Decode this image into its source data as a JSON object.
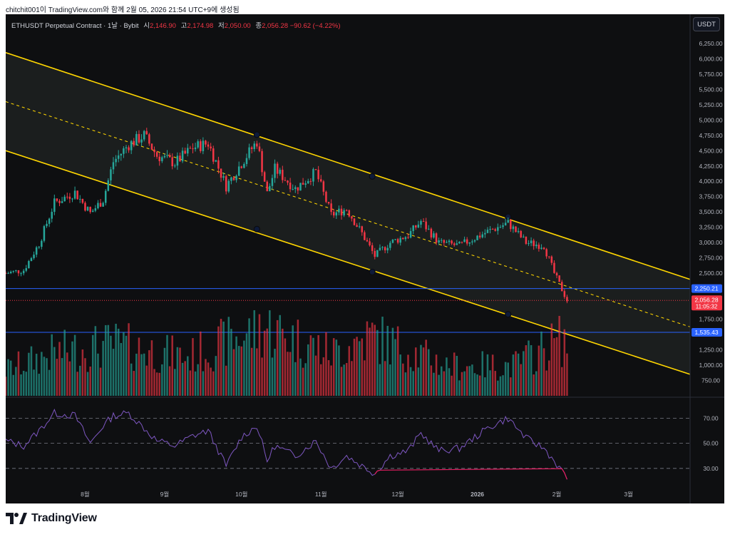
{
  "caption": "chitchit001이 TradingView.com와 함께 2월 05, 2026 21:54 UTC+9에 생성됨",
  "legend": {
    "symbol": "ETHUSDT Perpetual Contract · 1날 · Bybit",
    "open_label": "시",
    "open": "2,146.90",
    "high_label": "고",
    "high": "2,174.98",
    "low_label": "저",
    "low": "2,050.00",
    "close_label": "종",
    "close": "2,056.28",
    "change": "−90.62 (−4.22%)"
  },
  "currency_button": "USDT",
  "price_axis": {
    "ticks": [
      "6,250.00",
      "6,000.00",
      "5,750.00",
      "5,500.00",
      "5,250.00",
      "5,000.00",
      "4,750.00",
      "4,500.00",
      "4,250.00",
      "4,000.00",
      "3,750.00",
      "3,500.00",
      "3,250.00",
      "3,000.00",
      "2,750.00",
      "2,500.00",
      "1,750.00",
      "1,250.00",
      "1,000.00",
      "750.00"
    ],
    "tick_values": [
      6250,
      6000,
      5750,
      5500,
      5250,
      5000,
      4750,
      4500,
      4250,
      4000,
      3750,
      3500,
      3250,
      3000,
      2750,
      2500,
      1750,
      1250,
      1000,
      750
    ],
    "labels": [
      {
        "value": 2250.21,
        "text": "2,250.21",
        "color": "#2962ff"
      },
      {
        "value": 1535.43,
        "text": "1,535.43",
        "color": "#2962ff"
      }
    ],
    "last_price": {
      "value": 2056.28,
      "text": "2,056.28",
      "countdown": "11:05:32",
      "color": "#f23645"
    }
  },
  "rsi_axis": {
    "ticks": [
      "70.00",
      "50.00",
      "30.00"
    ],
    "tick_values": [
      70,
      50,
      30
    ]
  },
  "time_axis": [
    "8월",
    "9월",
    "10월",
    "11월",
    "12월",
    "2026",
    "2월",
    "3월"
  ],
  "colors": {
    "up": "#26a69a",
    "down": "#f23645",
    "channel": "#ffd600",
    "hline": "#2962ff",
    "rsi": "#7e57c2",
    "rsi_low": "#e91e63"
  },
  "brand": "TradingView",
  "chart_data": {
    "type": "candlestick",
    "title": "ETHUSDT Perpetual Contract · 1날 · Bybit",
    "yrange": [
      500,
      6400
    ],
    "x_range": [
      "2025-07-01",
      "2026-03-25"
    ],
    "price_path": [
      [
        "2025-07-01",
        2500
      ],
      [
        "2025-07-08",
        2550
      ],
      [
        "2025-07-14",
        2980
      ],
      [
        "2025-07-20",
        3650
      ],
      [
        "2025-07-28",
        3820
      ],
      [
        "2025-08-03",
        3480
      ],
      [
        "2025-08-08",
        3700
      ],
      [
        "2025-08-12",
        4320
      ],
      [
        "2025-08-18",
        4600
      ],
      [
        "2025-08-24",
        4750
      ],
      [
        "2025-08-29",
        4420
      ],
      [
        "2025-09-05",
        4300
      ],
      [
        "2025-09-12",
        4550
      ],
      [
        "2025-09-18",
        4620
      ],
      [
        "2025-09-25",
        3920
      ],
      [
        "2025-10-01",
        4300
      ],
      [
        "2025-10-07",
        4650
      ],
      [
        "2025-10-11",
        3800
      ],
      [
        "2025-10-14",
        4200
      ],
      [
        "2025-10-22",
        3880
      ],
      [
        "2025-10-30",
        4150
      ],
      [
        "2025-11-05",
        3450
      ],
      [
        "2025-11-11",
        3550
      ],
      [
        "2025-11-17",
        3150
      ],
      [
        "2025-11-22",
        2780
      ],
      [
        "2025-11-28",
        3000
      ],
      [
        "2025-12-05",
        3120
      ],
      [
        "2025-12-10",
        3350
      ],
      [
        "2025-12-17",
        3000
      ],
      [
        "2025-12-25",
        2950
      ],
      [
        "2026-01-05",
        3180
      ],
      [
        "2026-01-13",
        3320
      ],
      [
        "2026-01-20",
        3000
      ],
      [
        "2026-01-27",
        2950
      ],
      [
        "2026-01-31",
        2500
      ],
      [
        "2026-02-05",
        2056
      ]
    ],
    "volume_path": [
      [
        "2025-07-01",
        0.3
      ],
      [
        "2025-07-20",
        0.5
      ],
      [
        "2025-08-12",
        0.6
      ],
      [
        "2025-09-10",
        0.45
      ],
      [
        "2025-10-10",
        0.8
      ],
      [
        "2025-11-05",
        0.5
      ],
      [
        "2025-11-21",
        0.7
      ],
      [
        "2025-12-20",
        0.35
      ],
      [
        "2026-01-15",
        0.35
      ],
      [
        "2026-02-02",
        0.65
      ]
    ],
    "channel": {
      "upper": [
        [
          "2025-07-01",
          6100
        ],
        [
          "2026-03-25",
          2400
        ]
      ],
      "lower": [
        [
          "2025-07-01",
          4500
        ],
        [
          "2026-03-25",
          850
        ]
      ],
      "mid": [
        [
          "2025-07-01",
          5300
        ],
        [
          "2026-03-25",
          1625
        ]
      ],
      "anchors": [
        [
          "2025-10-07",
          4760
        ],
        [
          "2025-11-21",
          4080
        ],
        [
          "2026-01-13",
          3420
        ],
        [
          "2025-10-07",
          3220
        ],
        [
          "2025-11-21",
          2520
        ],
        [
          "2026-01-13",
          1830
        ]
      ]
    },
    "horizontal_lines": [
      2250.21,
      1535.43
    ],
    "rsi": {
      "levels": [
        70,
        50,
        30
      ],
      "path": [
        [
          "2025-07-01",
          52
        ],
        [
          "2025-07-08",
          48
        ],
        [
          "2025-07-14",
          60
        ],
        [
          "2025-07-20",
          74
        ],
        [
          "2025-07-28",
          72
        ],
        [
          "2025-08-03",
          50
        ],
        [
          "2025-08-08",
          64
        ],
        [
          "2025-08-12",
          72
        ],
        [
          "2025-08-18",
          74
        ],
        [
          "2025-08-24",
          62
        ],
        [
          "2025-08-29",
          52
        ],
        [
          "2025-09-05",
          48
        ],
        [
          "2025-09-12",
          56
        ],
        [
          "2025-09-18",
          60
        ],
        [
          "2025-09-25",
          32
        ],
        [
          "2025-10-01",
          55
        ],
        [
          "2025-10-07",
          64
        ],
        [
          "2025-10-11",
          36
        ],
        [
          "2025-10-14",
          48
        ],
        [
          "2025-10-22",
          40
        ],
        [
          "2025-10-30",
          52
        ],
        [
          "2025-11-05",
          30
        ],
        [
          "2025-11-11",
          40
        ],
        [
          "2025-11-17",
          32
        ],
        [
          "2025-11-22",
          26
        ],
        [
          "2025-11-28",
          40
        ],
        [
          "2025-12-05",
          44
        ],
        [
          "2025-12-10",
          58
        ],
        [
          "2025-12-17",
          44
        ],
        [
          "2025-12-25",
          46
        ],
        [
          "2026-01-05",
          62
        ],
        [
          "2026-01-13",
          70
        ],
        [
          "2026-01-20",
          54
        ],
        [
          "2026-01-27",
          46
        ],
        [
          "2026-01-31",
          36
        ],
        [
          "2026-02-05",
          22
        ]
      ]
    }
  }
}
